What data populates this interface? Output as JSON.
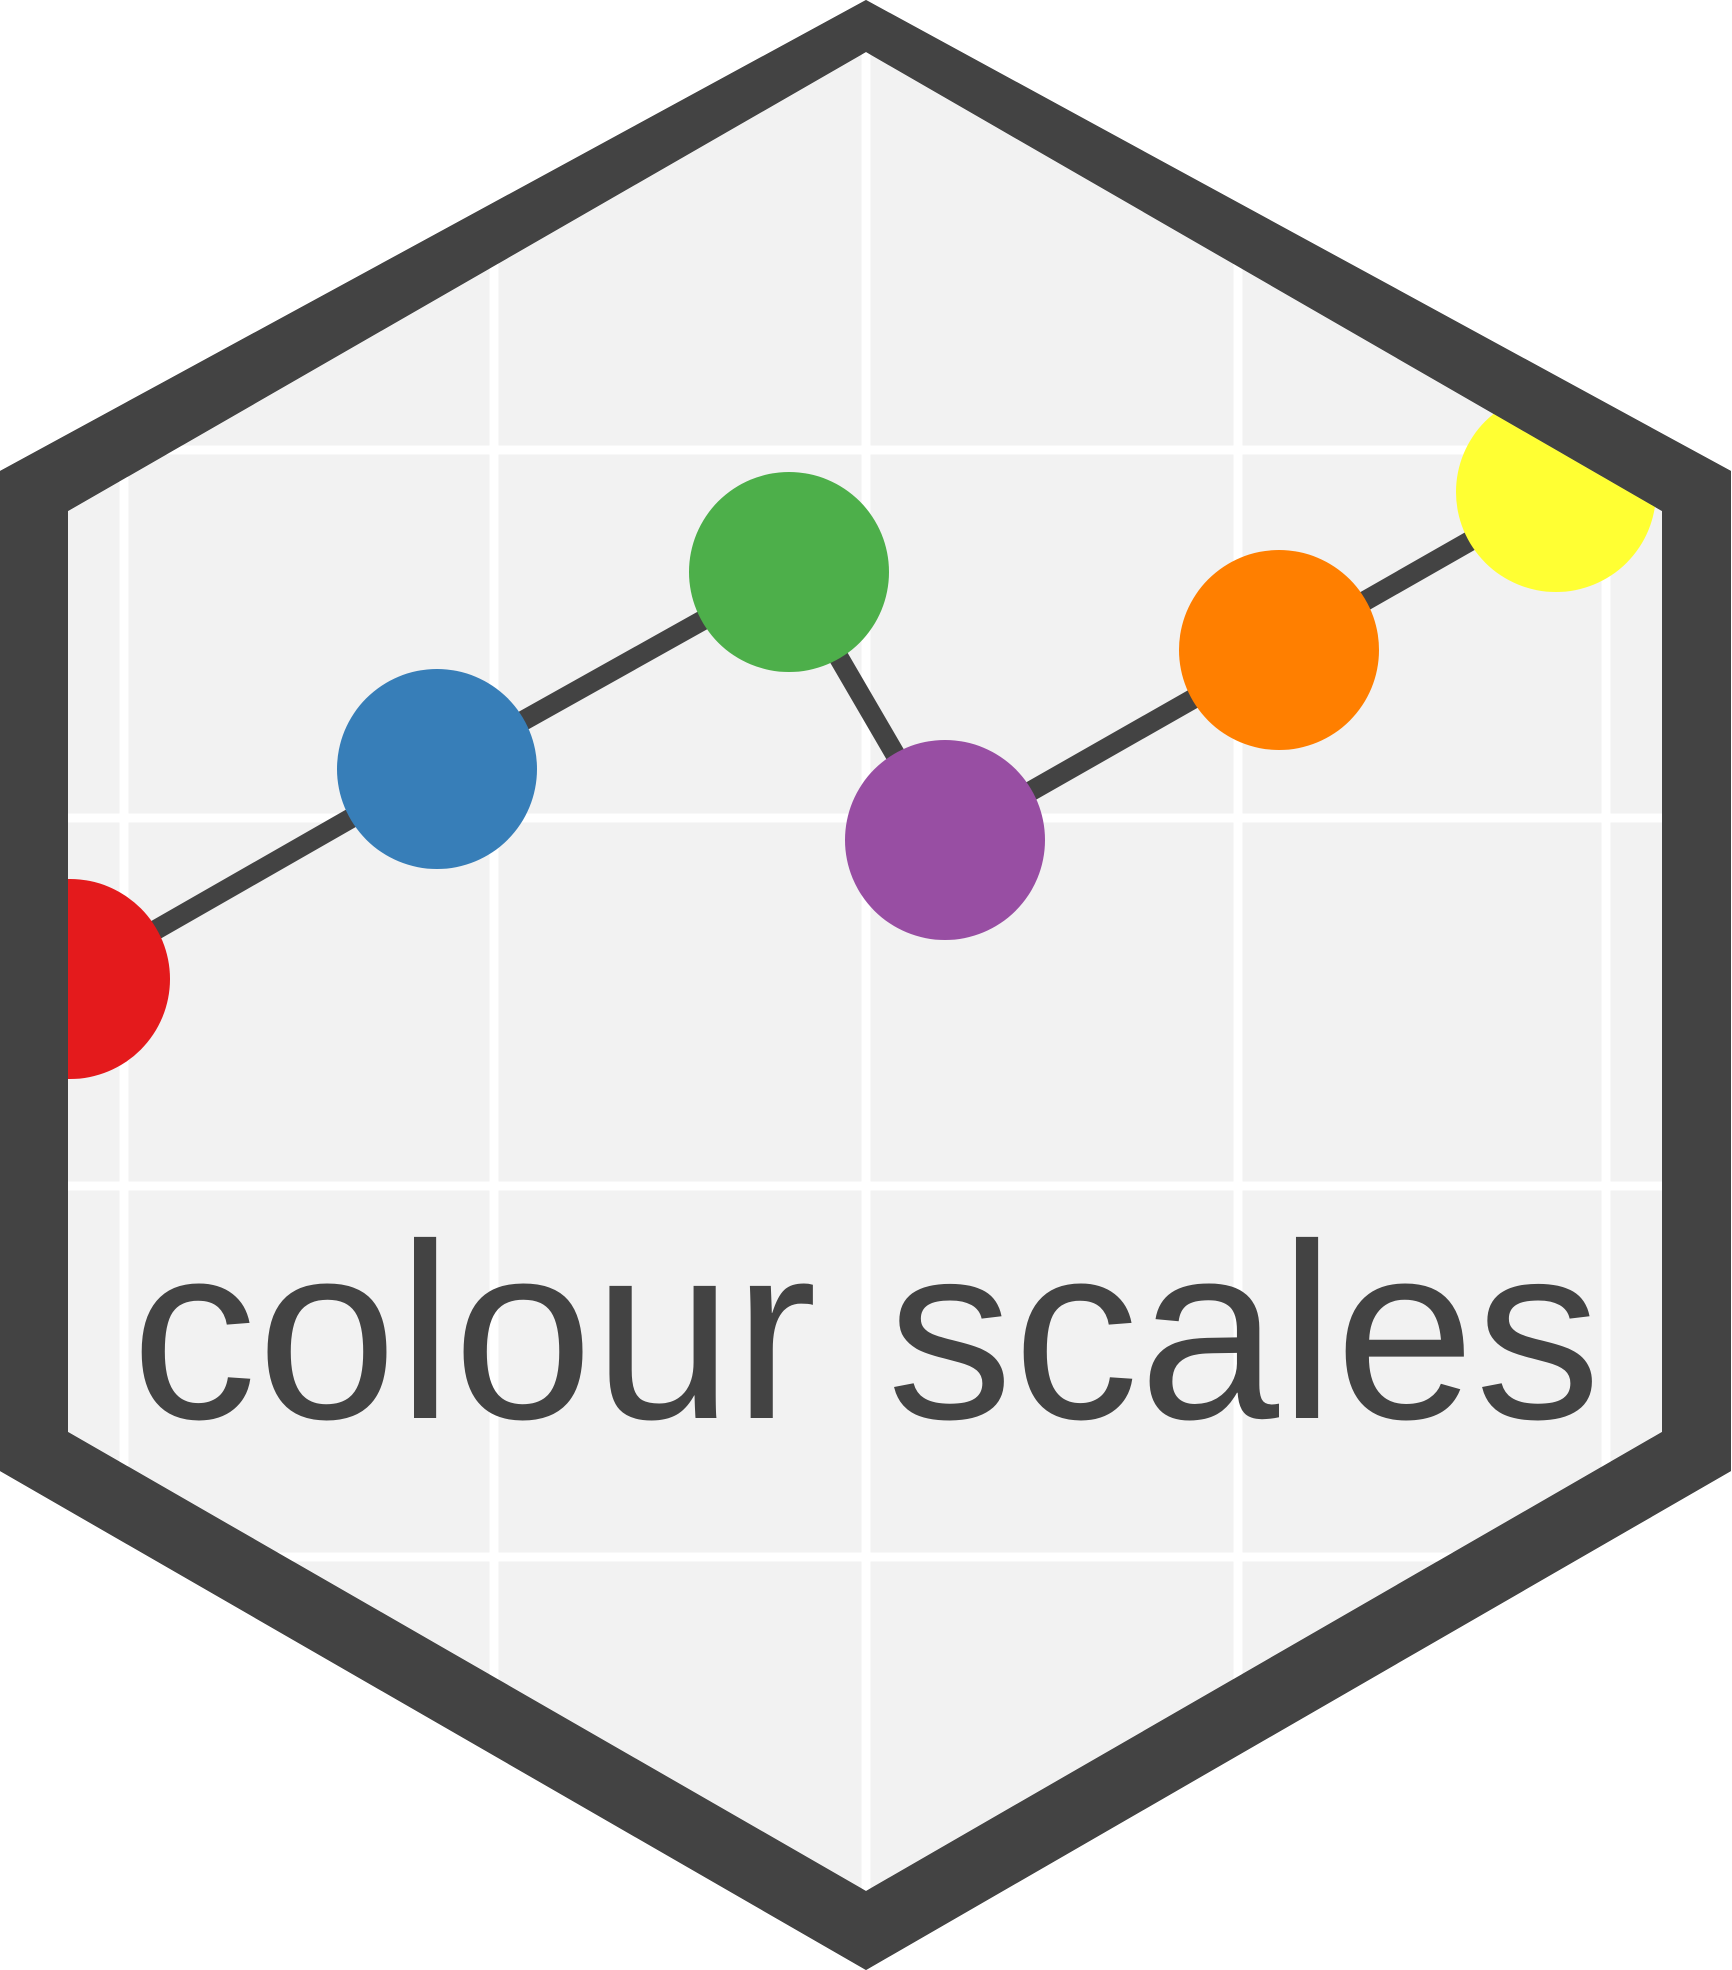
{
  "logo": {
    "text": "colour scales",
    "colors": {
      "border": "#434343",
      "panel": "#f2f2f2",
      "grid": "#ffffff",
      "line": "#434343",
      "text": "#434343"
    },
    "points": [
      {
        "color": "#e41a1c"
      },
      {
        "color": "#377eb8"
      },
      {
        "color": "#4daf4a"
      },
      {
        "color": "#984ea3"
      },
      {
        "color": "#ff7f00"
      },
      {
        "color": "#ffff33"
      }
    ]
  }
}
